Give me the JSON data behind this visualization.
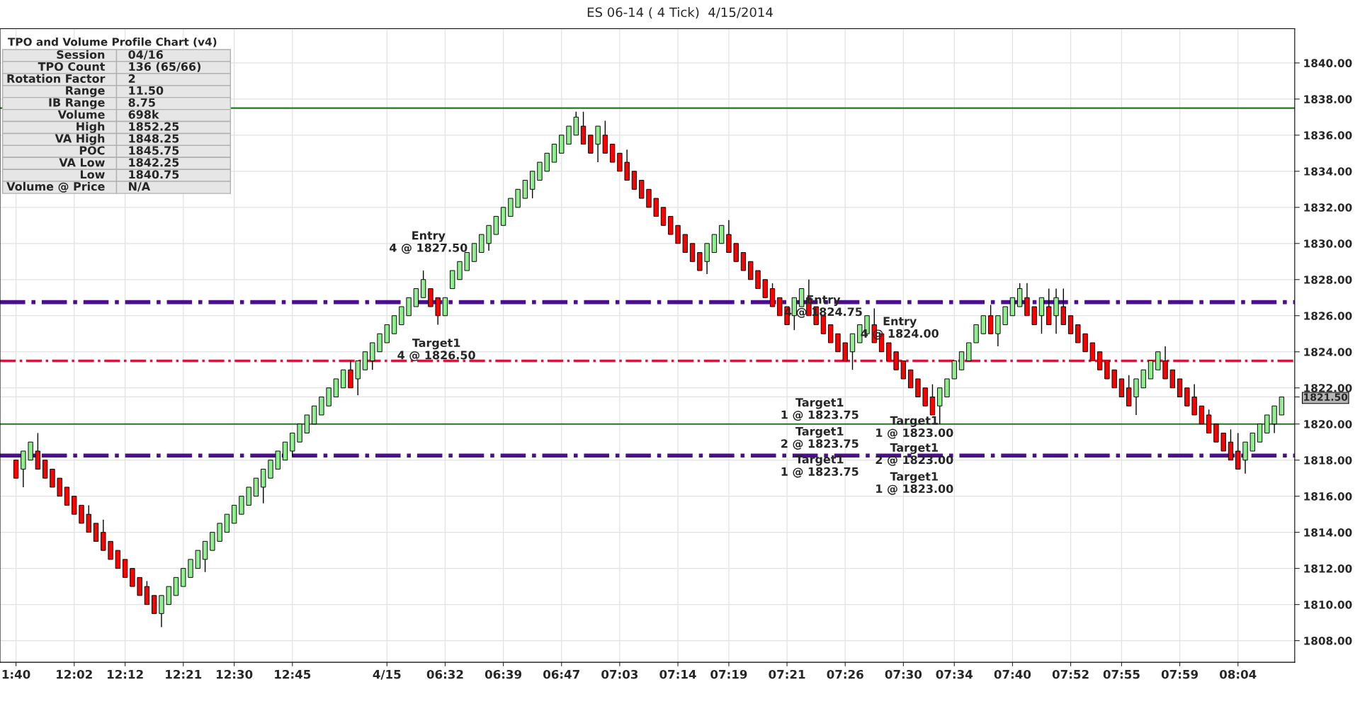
{
  "chart_data": {
    "type": "candlestick",
    "title": "ES 06-14 ( 4 Tick)  4/15/2014",
    "categories": [
      "1:40",
      null,
      null,
      null,
      null,
      null,
      null,
      null,
      "12:02",
      null,
      null,
      null,
      null,
      null,
      null,
      "12:12",
      null,
      null,
      null,
      null,
      null,
      null,
      null,
      "12:21",
      null,
      null,
      null,
      null,
      null,
      null,
      "12:30",
      null,
      null,
      null,
      null,
      null,
      null,
      null,
      "12:45",
      null,
      null,
      null,
      null,
      null,
      null,
      null,
      null,
      null,
      null,
      null,
      null,
      "4/15",
      null,
      null,
      null,
      null,
      null,
      null,
      null,
      "06:32",
      null,
      null,
      null,
      null,
      null,
      null,
      null,
      "06:39",
      null,
      null,
      null,
      null,
      null,
      null,
      null,
      "06:47",
      null,
      null,
      null,
      null,
      null,
      null,
      null,
      "07:03",
      null,
      null,
      null,
      null,
      null,
      null,
      null,
      "07:14",
      null,
      null,
      null,
      null,
      null,
      null,
      "07:19",
      null,
      null,
      null,
      null,
      null,
      null,
      null,
      "07:21",
      null,
      null,
      null,
      null,
      null,
      null,
      null,
      "07:26",
      null,
      null,
      null,
      null,
      null,
      null,
      null,
      "07:30",
      null,
      null,
      null,
      null,
      null,
      null,
      "07:34",
      null,
      null,
      null,
      null,
      null,
      null,
      null,
      "07:40",
      null,
      null,
      null,
      null,
      null,
      null,
      null,
      "07:52",
      null,
      null,
      null,
      null,
      null,
      null,
      "07:55",
      null,
      null,
      null,
      null,
      null,
      null,
      null,
      "07:59",
      null,
      null,
      null,
      null,
      null,
      null,
      null,
      "08:04",
      null,
      null,
      null,
      null,
      null,
      null
    ],
    "ohlc": [
      [
        1818,
        1818,
        1817,
        1817
      ],
      [
        1817.5,
        1818.5,
        1816.5,
        1818.5
      ],
      [
        1818,
        1819,
        1818,
        1819
      ],
      [
        1818.5,
        1819.5,
        1817.5,
        1817.5
      ],
      [
        1818,
        1818,
        1817,
        1817
      ],
      [
        1817.5,
        1817.5,
        1816.5,
        1816.5
      ],
      [
        1817,
        1817,
        1816,
        1816
      ],
      [
        1816.5,
        1816.5,
        1815.5,
        1815.5
      ],
      [
        1816,
        1816,
        1815,
        1815
      ],
      [
        1815.5,
        1815.5,
        1814.5,
        1814.5
      ],
      [
        1815,
        1815.5,
        1814,
        1814
      ],
      [
        1814.5,
        1814.5,
        1813.5,
        1813.5
      ],
      [
        1814,
        1814.7,
        1813,
        1813
      ],
      [
        1813.5,
        1813.5,
        1812.5,
        1812.5
      ],
      [
        1813,
        1813,
        1812,
        1812
      ],
      [
        1812.5,
        1812.5,
        1811.5,
        1811.5
      ],
      [
        1812,
        1812,
        1811,
        1811
      ],
      [
        1811.5,
        1811.5,
        1810.5,
        1810.5
      ],
      [
        1811,
        1811.3,
        1810,
        1810
      ],
      [
        1810.5,
        1810.5,
        1809.5,
        1809.5
      ],
      [
        1809.5,
        1810.5,
        1808.75,
        1810.5
      ],
      [
        1810,
        1811,
        1810,
        1811
      ],
      [
        1810.5,
        1811.5,
        1810.5,
        1811.5
      ],
      [
        1811,
        1812,
        1811,
        1812
      ],
      [
        1811.5,
        1812.5,
        1811.5,
        1812.5
      ],
      [
        1812,
        1813,
        1812,
        1813
      ],
      [
        1812.5,
        1813.5,
        1811.8,
        1813.5
      ],
      [
        1813,
        1814,
        1813,
        1814
      ],
      [
        1813.5,
        1814.5,
        1813.5,
        1814.5
      ],
      [
        1814,
        1815,
        1814,
        1815
      ],
      [
        1814.5,
        1815.5,
        1814.5,
        1815.5
      ],
      [
        1815,
        1816,
        1815,
        1816
      ],
      [
        1815.5,
        1816.5,
        1815.5,
        1816.5
      ],
      [
        1816,
        1817,
        1816,
        1817
      ],
      [
        1816.5,
        1817.5,
        1815.6,
        1817.5
      ],
      [
        1817,
        1818,
        1817,
        1818
      ],
      [
        1817.5,
        1818.5,
        1817.5,
        1818.5
      ],
      [
        1818,
        1819,
        1818,
        1819
      ],
      [
        1818.5,
        1819.5,
        1818.2,
        1819.5
      ],
      [
        1819,
        1820,
        1819,
        1820
      ],
      [
        1819.5,
        1820.5,
        1819.5,
        1820.5
      ],
      [
        1820,
        1821,
        1820,
        1821
      ],
      [
        1820.5,
        1821.5,
        1820.5,
        1821.5
      ],
      [
        1821,
        1822,
        1821,
        1822
      ],
      [
        1821.5,
        1822.5,
        1821.5,
        1822.5
      ],
      [
        1822,
        1823,
        1822,
        1823
      ],
      [
        1823,
        1823.5,
        1822,
        1822
      ],
      [
        1822.5,
        1823.5,
        1821.6,
        1823.5
      ],
      [
        1823,
        1824,
        1823,
        1824
      ],
      [
        1823.5,
        1824.5,
        1823,
        1824.5
      ],
      [
        1824,
        1825,
        1824,
        1825
      ],
      [
        1824.5,
        1825.5,
        1824.5,
        1825.5
      ],
      [
        1825,
        1826,
        1825,
        1826
      ],
      [
        1825.5,
        1826.5,
        1825.5,
        1826.5
      ],
      [
        1826,
        1827,
        1826,
        1827
      ],
      [
        1826.5,
        1827.5,
        1826.5,
        1827.5
      ],
      [
        1827,
        1828.5,
        1827,
        1828
      ],
      [
        1827.5,
        1827.5,
        1826.5,
        1826.5
      ],
      [
        1827,
        1827,
        1825.5,
        1826
      ],
      [
        1826,
        1827,
        1826,
        1827
      ],
      [
        1827.5,
        1828.5,
        1827.5,
        1828.5
      ],
      [
        1828,
        1829,
        1828,
        1829
      ],
      [
        1828.5,
        1829.5,
        1828.5,
        1829.5
      ],
      [
        1829,
        1830,
        1829,
        1830
      ],
      [
        1829.5,
        1830.5,
        1829.5,
        1830.5
      ],
      [
        1830,
        1831,
        1829.6,
        1831
      ],
      [
        1830.5,
        1831.5,
        1830.5,
        1831.5
      ],
      [
        1831,
        1832,
        1831,
        1832
      ],
      [
        1831.5,
        1832.5,
        1831.5,
        1832.5
      ],
      [
        1832,
        1833,
        1832,
        1833
      ],
      [
        1832.5,
        1833.5,
        1832.5,
        1833.5
      ],
      [
        1833,
        1834,
        1832.5,
        1834
      ],
      [
        1833.5,
        1834.5,
        1833.5,
        1834.5
      ],
      [
        1834,
        1835,
        1834,
        1835
      ],
      [
        1834.5,
        1835.5,
        1834.5,
        1835.5
      ],
      [
        1835,
        1836,
        1835,
        1836
      ],
      [
        1835.5,
        1836.5,
        1835.5,
        1836.5
      ],
      [
        1836,
        1837.3,
        1836,
        1837
      ],
      [
        1836.5,
        1837.3,
        1835.5,
        1835.5
      ],
      [
        1836,
        1836,
        1835,
        1835
      ],
      [
        1835.5,
        1836.5,
        1834.5,
        1836.5
      ],
      [
        1836,
        1836.8,
        1835,
        1835
      ],
      [
        1835.5,
        1835.5,
        1834.5,
        1834.5
      ],
      [
        1835,
        1835,
        1834,
        1834
      ],
      [
        1834.5,
        1835.2,
        1833.5,
        1833.5
      ],
      [
        1834,
        1834,
        1833,
        1833
      ],
      [
        1833.5,
        1833.5,
        1832.5,
        1832.5
      ],
      [
        1833,
        1833,
        1832,
        1832
      ],
      [
        1832.5,
        1832.5,
        1831.5,
        1831.5
      ],
      [
        1832,
        1832,
        1831,
        1831
      ],
      [
        1831.5,
        1831.5,
        1830.5,
        1830.5
      ],
      [
        1831,
        1831,
        1830,
        1830
      ],
      [
        1830.5,
        1830.5,
        1829.5,
        1829.5
      ],
      [
        1830,
        1830,
        1829,
        1829
      ],
      [
        1829.5,
        1829.5,
        1828.5,
        1828.5
      ],
      [
        1829,
        1830,
        1828.3,
        1830
      ],
      [
        1829.5,
        1830.5,
        1829.5,
        1830.5
      ],
      [
        1830,
        1831,
        1830,
        1831
      ],
      [
        1830.5,
        1831.3,
        1829.5,
        1829.5
      ],
      [
        1830,
        1830,
        1829,
        1829
      ],
      [
        1829.5,
        1829.5,
        1828.5,
        1828.5
      ],
      [
        1829,
        1829,
        1828,
        1828
      ],
      [
        1828.5,
        1828.5,
        1827.5,
        1827.5
      ],
      [
        1828,
        1828,
        1827,
        1827
      ],
      [
        1827.5,
        1827.8,
        1826.5,
        1826.5
      ],
      [
        1827,
        1827,
        1826,
        1826
      ],
      [
        1826.5,
        1826.5,
        1825.5,
        1825.5
      ],
      [
        1826,
        1827,
        1825.2,
        1827
      ],
      [
        1826.5,
        1827.5,
        1826.5,
        1827.5
      ],
      [
        1827,
        1828,
        1826,
        1826
      ],
      [
        1826.5,
        1826.5,
        1825.5,
        1825.5
      ],
      [
        1826,
        1826,
        1825,
        1825
      ],
      [
        1825.5,
        1825.5,
        1824.5,
        1824.5
      ],
      [
        1825,
        1825,
        1824,
        1824
      ],
      [
        1824.5,
        1824.5,
        1823.5,
        1823.5
      ],
      [
        1824,
        1825,
        1823,
        1825
      ],
      [
        1824.5,
        1825.5,
        1824.5,
        1825.5
      ],
      [
        1825,
        1826,
        1825,
        1826
      ],
      [
        1825.5,
        1826.4,
        1824.5,
        1824.5
      ],
      [
        1825,
        1825,
        1824,
        1824
      ],
      [
        1824.5,
        1824.5,
        1823.5,
        1823.5
      ],
      [
        1824,
        1824,
        1823,
        1823
      ],
      [
        1823.5,
        1823.5,
        1822.5,
        1822.5
      ],
      [
        1823,
        1823,
        1822,
        1822
      ],
      [
        1822.5,
        1822.5,
        1821.5,
        1821.5
      ],
      [
        1822,
        1822,
        1821,
        1821
      ],
      [
        1821.5,
        1822.2,
        1820.5,
        1820.5
      ],
      [
        1821,
        1822,
        1820,
        1822
      ],
      [
        1821.5,
        1822.5,
        1821.5,
        1822.5
      ],
      [
        1822.5,
        1823.5,
        1822.5,
        1823.5
      ],
      [
        1823,
        1824,
        1823,
        1824
      ],
      [
        1823.5,
        1824.5,
        1823.5,
        1824.5
      ],
      [
        1824.5,
        1825.5,
        1824.5,
        1825.5
      ],
      [
        1825,
        1826,
        1825,
        1826
      ],
      [
        1826,
        1826.6,
        1825,
        1825
      ],
      [
        1825,
        1826,
        1824.3,
        1826
      ],
      [
        1825.5,
        1826.5,
        1825.5,
        1826.5
      ],
      [
        1826,
        1827,
        1826,
        1827
      ],
      [
        1826.5,
        1827.8,
        1826.5,
        1827.5
      ],
      [
        1827,
        1827.8,
        1826,
        1826
      ],
      [
        1826.5,
        1826.5,
        1825.5,
        1825.5
      ],
      [
        1826,
        1827,
        1825,
        1827
      ],
      [
        1826.5,
        1827.5,
        1825.5,
        1825.5
      ],
      [
        1826,
        1827.5,
        1825,
        1827
      ],
      [
        1826.5,
        1827.5,
        1825.5,
        1825.5
      ],
      [
        1826,
        1826,
        1825,
        1825
      ],
      [
        1825.5,
        1825.5,
        1824.5,
        1824.5
      ],
      [
        1825,
        1825,
        1824,
        1824
      ],
      [
        1824.5,
        1824.5,
        1823.5,
        1823.5
      ],
      [
        1824,
        1824,
        1823,
        1823
      ],
      [
        1823.5,
        1823.5,
        1822.5,
        1822.5
      ],
      [
        1823,
        1823,
        1822,
        1822
      ],
      [
        1822.5,
        1822.5,
        1821.5,
        1821.5
      ],
      [
        1822,
        1822.7,
        1821,
        1821
      ],
      [
        1821.5,
        1822.5,
        1820.5,
        1822.5
      ],
      [
        1822,
        1823,
        1822,
        1823
      ],
      [
        1822.5,
        1823.5,
        1822.5,
        1823.5
      ],
      [
        1823,
        1824,
        1823,
        1824
      ],
      [
        1823.5,
        1824.3,
        1822.5,
        1822.5
      ],
      [
        1823,
        1823,
        1822,
        1822
      ],
      [
        1822.5,
        1822.5,
        1821.5,
        1821.5
      ],
      [
        1822,
        1822,
        1821,
        1821
      ],
      [
        1821.5,
        1822.2,
        1820.5,
        1820.5
      ],
      [
        1821,
        1821,
        1820,
        1820
      ],
      [
        1820.5,
        1820.8,
        1819.5,
        1819.5
      ],
      [
        1820,
        1820,
        1819,
        1819
      ],
      [
        1819.5,
        1819.5,
        1818.5,
        1818.5
      ],
      [
        1819,
        1819.7,
        1818,
        1818
      ],
      [
        1818.5,
        1819.5,
        1817.5,
        1817.5
      ],
      [
        1818,
        1819,
        1817.25,
        1819
      ],
      [
        1818.5,
        1819.5,
        1818.5,
        1819.5
      ],
      [
        1819,
        1820,
        1819,
        1820
      ],
      [
        1819.5,
        1820.5,
        1819.5,
        1820.5
      ],
      [
        1820,
        1821,
        1819.5,
        1821
      ],
      [
        1820.5,
        1821.5,
        1820.5,
        1821.5
      ]
    ],
    "colors": [
      "#ff0000",
      "#90ee90",
      "#90ee90",
      "#ff0000",
      "#ff0000",
      "#ff0000",
      "#ff0000",
      "#ff0000",
      "#ff0000",
      "#ff0000",
      "#ff0000",
      "#ff0000",
      "#ff0000",
      "#ff0000",
      "#ff0000",
      "#ff0000",
      "#ff0000",
      "#ff0000",
      "#ff0000",
      "#ff0000",
      "#90ee90",
      "#90ee90",
      "#90ee90",
      "#90ee90",
      "#90ee90",
      "#90ee90",
      "#90ee90",
      "#90ee90",
      "#90ee90",
      "#90ee90",
      "#90ee90",
      "#90ee90",
      "#90ee90",
      "#90ee90",
      "#90ee90",
      "#90ee90",
      "#90ee90",
      "#90ee90",
      "#90ee90",
      "#90ee90",
      "#90ee90",
      "#90ee90",
      "#90ee90",
      "#90ee90",
      "#90ee90",
      "#90ee90",
      "#ff0000",
      "#90ee90",
      "#90ee90",
      "#90ee90",
      "#90ee90",
      "#90ee90",
      "#90ee90",
      "#90ee90",
      "#90ee90",
      "#90ee90",
      "#90ee90",
      "#ff0000",
      "#ff0000",
      "#90ee90",
      "#90ee90",
      "#90ee90",
      "#90ee90",
      "#90ee90",
      "#90ee90",
      "#90ee90",
      "#90ee90",
      "#90ee90",
      "#90ee90",
      "#90ee90",
      "#90ee90",
      "#90ee90",
      "#90ee90",
      "#90ee90",
      "#90ee90",
      "#90ee90",
      "#90ee90",
      "#90ee90",
      "#ff0000",
      "#ff0000",
      "#90ee90",
      "#ff0000",
      "#ff0000",
      "#ff0000",
      "#ff0000",
      "#ff0000",
      "#ff0000",
      "#ff0000",
      "#ff0000",
      "#ff0000",
      "#ff0000",
      "#ff0000",
      "#ff0000",
      "#ff0000",
      "#ff0000",
      "#90ee90",
      "#90ee90",
      "#90ee90",
      "#ff0000",
      "#ff0000",
      "#ff0000",
      "#ff0000",
      "#ff0000",
      "#ff0000",
      "#ff0000",
      "#ff0000",
      "#ff0000",
      "#90ee90",
      "#90ee90",
      "#ff0000",
      "#ff0000",
      "#ff0000",
      "#ff0000",
      "#ff0000",
      "#ff0000",
      "#90ee90",
      "#90ee90",
      "#90ee90",
      "#ff0000",
      "#ff0000",
      "#ff0000",
      "#ff0000",
      "#ff0000",
      "#ff0000",
      "#ff0000",
      "#ff0000",
      "#ff0000",
      "#90ee90",
      "#90ee90",
      "#90ee90",
      "#90ee90",
      "#90ee90",
      "#90ee90",
      "#90ee90",
      "#ff0000",
      "#90ee90",
      "#90ee90",
      "#90ee90",
      "#90ee90",
      "#ff0000",
      "#ff0000",
      "#90ee90",
      "#ff0000",
      "#90ee90",
      "#ff0000",
      "#ff0000",
      "#ff0000",
      "#ff0000",
      "#ff0000",
      "#ff0000",
      "#ff0000",
      "#ff0000",
      "#ff0000",
      "#ff0000",
      "#90ee90",
      "#90ee90",
      "#90ee90",
      "#90ee90",
      "#ff0000",
      "#ff0000",
      "#ff0000",
      "#ff0000",
      "#ff0000",
      "#ff0000",
      "#ff0000",
      "#ff0000",
      "#ff0000",
      "#ff0000",
      "#ff0000",
      "#90ee90",
      "#90ee90",
      "#90ee90",
      "#90ee90",
      "#90ee90",
      "#90ee90"
    ],
    "ylim": [
      1806.8,
      1841.9
    ],
    "yticks": [
      {
        "value": 1808,
        "label": "1808.00"
      },
      {
        "value": 1810,
        "label": "1810.00"
      },
      {
        "value": 1812,
        "label": "1812.00"
      },
      {
        "value": 1814,
        "label": "1814.00"
      },
      {
        "value": 1816,
        "label": "1816.00"
      },
      {
        "value": 1818,
        "label": "1818.00"
      },
      {
        "value": 1820,
        "label": "1820.00"
      },
      {
        "value": 1821.5,
        "label": "1821.50"
      },
      {
        "value": 1822,
        "label": "1822.00"
      },
      {
        "value": 1824,
        "label": "1824.00"
      },
      {
        "value": 1826,
        "label": "1826.00"
      },
      {
        "value": 1828,
        "label": "1828.00"
      },
      {
        "value": 1830,
        "label": "1830.00"
      },
      {
        "value": 1832,
        "label": "1832.00"
      },
      {
        "value": 1834,
        "label": "1834.00"
      },
      {
        "value": 1836,
        "label": "1836.00"
      },
      {
        "value": 1838,
        "label": "1838.00"
      },
      {
        "value": 1840,
        "label": "1840.00"
      }
    ],
    "grid": true,
    "ref_lines": [
      {
        "axis": "y",
        "value": 1837.5,
        "color": "#1f7a1f",
        "line_style": "solid"
      },
      {
        "axis": "y",
        "value": 1820,
        "color": "#1f7a1f",
        "line_style": "solid"
      },
      {
        "axis": "y",
        "value": 1826.75,
        "color": "#4b0f8c",
        "line_style": "dashdot"
      },
      {
        "axis": "y",
        "value": 1818.25,
        "color": "#4b0f8c",
        "line_style": "dashdot"
      },
      {
        "axis": "y",
        "value": 1823.5,
        "color": "#dc143c",
        "line_style": "dashdot"
      }
    ],
    "annotations": [
      "TPO and Volume Profile Chart (v4)",
      "Session",
      "04/16",
      "TPO Count",
      "136 (65/66)",
      "Rotation Factor",
      "2",
      "Range",
      "11.50",
      "IB Range",
      "8.75",
      "Volume",
      "698k",
      "High",
      "1852.25",
      "VA High",
      "1848.25",
      "POC",
      "1845.75",
      "VA Low",
      "1842.25",
      "Low",
      "1840.75",
      "Volume @ Price",
      "N/A",
      "Entry\n4 @ 1827.50",
      "Target1\n4 @ 1826.50",
      "Entry\n4 @ 1824.75",
      "Entry\n4 @ 1824.00",
      "Target1\n1 @ 1823.75",
      "Target1\n2 @ 1823.75",
      "Target1\n1 @ 1823.75",
      "Target1\n1 @ 1823.00",
      "Target1\n2 @ 1823.00",
      "Target1\n1 @ 1823.00"
    ]
  }
}
